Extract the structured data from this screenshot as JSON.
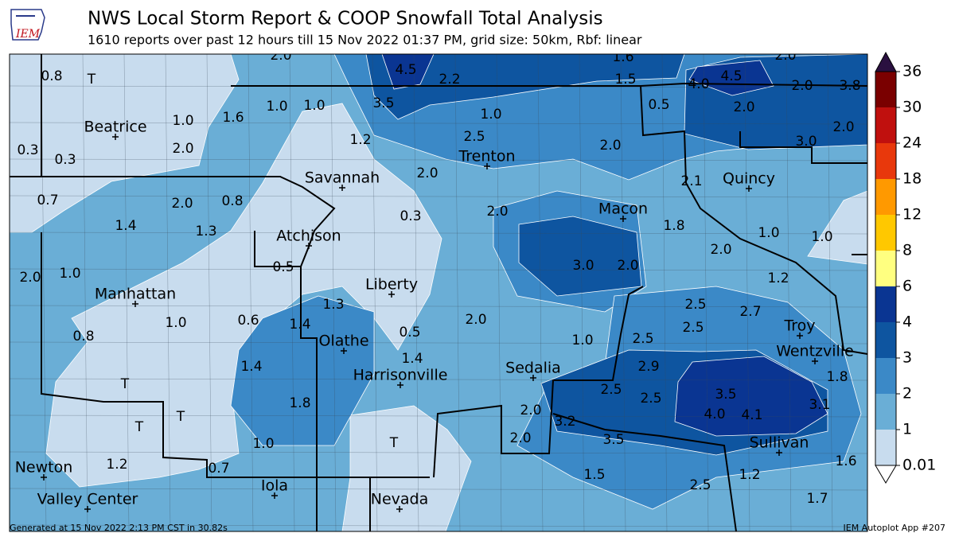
{
  "header": {
    "title": "NWS Local Storm Report & COOP Snowfall Total Analysis",
    "subtitle": "1610 reports over past 12 hours till 15 Nov 2022 01:37 PM, grid size: 50km, Rbf: linear"
  },
  "logo": "IEM",
  "map": {
    "cities": [
      "Beatrice",
      "Savannah",
      "Trenton",
      "Quincy",
      "Macon",
      "Atchison",
      "Liberty",
      "Manhattan",
      "Troy",
      "Olathe",
      "Wentzville",
      "Harrisonville",
      "Sedalia",
      "Sullivan",
      "Newton",
      "Iola",
      "Valley Center",
      "Nevada"
    ],
    "labels": [
      "2.0",
      "4.5",
      "2.2",
      "1.6",
      "1.5",
      "2.0",
      "0.8",
      "T",
      "4.0",
      "4.5",
      "2.0",
      "3.8",
      "3.5",
      "1.0",
      "1.0",
      "1.6",
      "0.5",
      "2.0",
      "1.0",
      "1.0",
      "2.0",
      "2.5",
      "1.2",
      "3.0",
      "2.0",
      "0.3",
      "0.3",
      "2.0",
      "2.0",
      "2.1",
      "0.7",
      "2.0",
      "0.8",
      "0.3",
      "2.0",
      "1.4",
      "1.3",
      "1.8",
      "1.0",
      "1.0",
      "2.0",
      "0.5",
      "3.0",
      "2.0",
      "2.0",
      "1.0",
      "1.2",
      "1.3",
      "2.5",
      "2.7",
      "1.0",
      "0.6",
      "1.4",
      "2.0",
      "2.5",
      "0.8",
      "0.5",
      "1.0",
      "2.5",
      "1.4",
      "1.4",
      "2.9",
      "1.8",
      "T",
      "2.5",
      "2.5",
      "3.5",
      "1.8",
      "2.0",
      "3.1",
      "4.0",
      "4.1",
      "T",
      "T",
      "3.2",
      "2.0",
      "3.5",
      "T",
      "1.0",
      "1.2",
      "0.7",
      "1.6",
      "1.5",
      "1.2",
      "2.5",
      "1.7"
    ]
  },
  "colorbar": {
    "ticks": [
      0.01,
      1,
      2,
      3,
      4,
      6,
      8,
      12,
      18,
      24,
      30,
      36
    ],
    "colors": [
      "#c8dcee",
      "#6aaed6",
      "#3b89c7",
      "#0e55a0",
      "#0a3592",
      "#ffff80",
      "#ffc800",
      "#ff9900",
      "#e8380c",
      "#c0100e",
      "#7a0000"
    ],
    "over_color": "#2a1040",
    "under_color": "#ffffff"
  },
  "footer": {
    "left": "Generated at 15 Nov 2022 2:13 PM CST in 30.82s",
    "right": "IEM Autoplot App #207"
  }
}
